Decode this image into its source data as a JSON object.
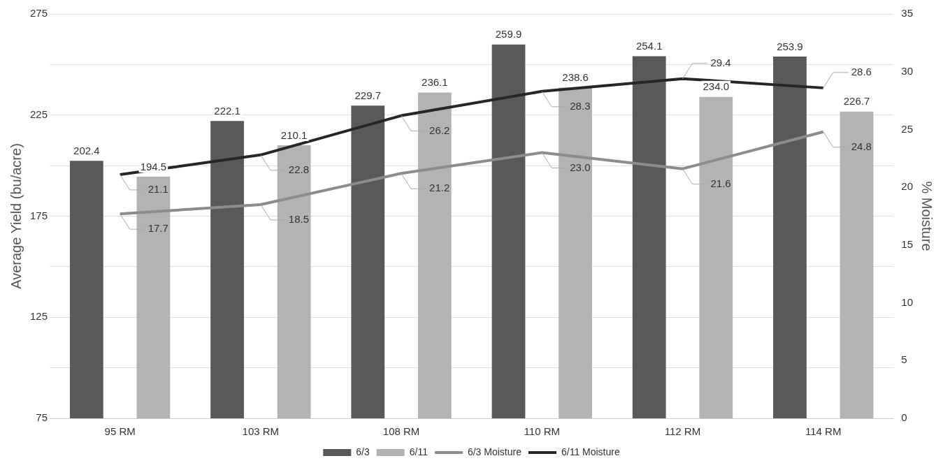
{
  "chart_data": {
    "type": "bar",
    "categories": [
      "95 RM",
      "103 RM",
      "108 RM",
      "110 RM",
      "112 RM",
      "114 RM"
    ],
    "ylabel": "Average Yield (bu/acre)",
    "y2label": "% Moisture",
    "ylim": [
      75,
      275
    ],
    "yticks": [
      75,
      {
        "value": 100,
        "label": null
      },
      125,
      {
        "value": 150,
        "label": null
      },
      175,
      {
        "value": 200,
        "label": null
      },
      225,
      {
        "value": 250,
        "label": null
      },
      275
    ],
    "y2lim": [
      0,
      35
    ],
    "y2ticks": [
      0,
      5,
      10,
      15,
      20,
      25,
      30,
      35
    ],
    "grid": "y",
    "legend": "bottom",
    "marker": "none",
    "series": [
      {
        "name": "6/3",
        "color": "#595959",
        "values": [
          202.4,
          222.1,
          229.7,
          259.9,
          254.1,
          253.9
        ],
        "value_labels": [
          "202.4",
          "222.1",
          "229.7",
          "259.9",
          "254.1",
          "253.9"
        ]
      },
      {
        "name": "6/11",
        "color": "#b3b3b3",
        "values": [
          194.5,
          210.1,
          236.1,
          238.6,
          234.0,
          226.7
        ],
        "value_labels": [
          "194.5",
          "210.1",
          "236.1",
          "238.6",
          "234.0",
          "226.7"
        ]
      },
      {
        "name": "6/3 Moisture",
        "type": "line",
        "axis": "y2",
        "color": "#8c8c8c",
        "values": [
          17.7,
          18.5,
          21.2,
          23.0,
          21.6,
          24.8
        ],
        "value_labels": [
          "17.7",
          "18.5",
          "21.2",
          "23.0",
          "21.6",
          "24.8"
        ]
      },
      {
        "name": "6/11 Moisture",
        "type": "line",
        "axis": "y2",
        "color": "#262626",
        "values": [
          21.1,
          22.8,
          26.2,
          28.3,
          29.4,
          28.6
        ],
        "value_labels": [
          "21.1",
          "22.8",
          "26.2",
          "28.3",
          "29.4",
          "28.6"
        ]
      }
    ]
  }
}
